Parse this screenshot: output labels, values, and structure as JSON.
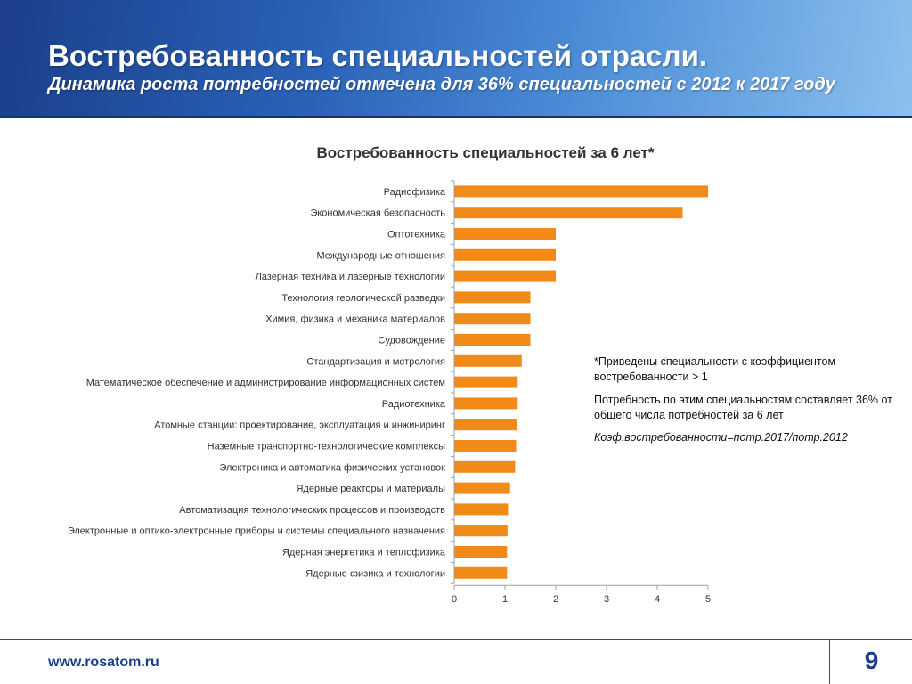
{
  "slide": {
    "title": "Востребованность специальностей отрасли.",
    "subtitle": "Динамика роста потребностей отмечена для 36% специальностей с 2012 к 2017 году"
  },
  "chart_data": {
    "type": "bar",
    "orientation": "horizontal",
    "title": "Востребованность специальностей за 6 лет*",
    "categories": [
      "Радиофизика",
      "Экономическая безопасность",
      "Оптотехника",
      "Международные отношения",
      "Лазерная техника и лазерные технологии",
      "Технология геологической разведки",
      "Химия, физика и механика материалов",
      "Судовождение",
      "Стандартизация и метрология",
      "Математическое обеспечение и администрирование информационных систем",
      "Радиотехника",
      "Атомные станции: проектирование, эксплуатация и инжиниринг",
      "Наземные транспортно-технологические комплексы",
      "Электроника и автоматика физических установок",
      "Ядерные реакторы и материалы",
      "Автоматизация технологических процессов и производств",
      "Электронные и оптико-электронные приборы и системы специального назначения",
      "Ядерная энергетика и теплофизика",
      "Ядерные физика и технологии"
    ],
    "values": [
      5.0,
      4.5,
      2.0,
      2.0,
      2.0,
      1.5,
      1.5,
      1.5,
      1.33,
      1.25,
      1.25,
      1.24,
      1.22,
      1.2,
      1.1,
      1.06,
      1.05,
      1.04,
      1.04
    ],
    "xlim": [
      0,
      5
    ],
    "xticks": [
      0,
      1,
      2,
      3,
      4,
      5
    ],
    "xlabel": "",
    "ylabel": "",
    "grid": false,
    "bar_color": "#f28a1a"
  },
  "notes": {
    "line1": "*Приведены специальности с коэффициентом востребованности > 1",
    "line2": "Потребность по этим специальностям составляет 36% от общего числа потребностей за 6 лет",
    "line3": "Коэф.востребованности=потр.2017/потр.2012"
  },
  "footer": {
    "url": "www.rosatom.ru",
    "page": "9"
  }
}
